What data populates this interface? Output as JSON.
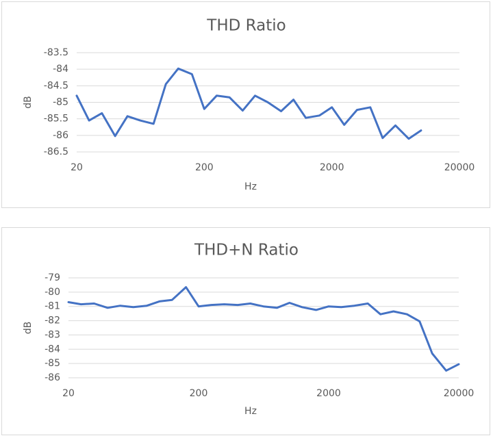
{
  "colors": {
    "series": "#4472C4",
    "grid": "#D9D9D9",
    "text": "#595959",
    "border": "#D9D9D9"
  },
  "chart_data": [
    {
      "type": "line",
      "title": "THD Ratio",
      "xlabel": "Hz",
      "ylabel": "dB",
      "x_scale": "log",
      "xlim": [
        20,
        20000
      ],
      "ylim": [
        -86.5,
        -83.5
      ],
      "x_ticks": [
        "20",
        "200",
        "2000",
        "20000"
      ],
      "y_ticks": [
        "-83.5",
        "-84",
        "-84.5",
        "-85",
        "-85.5",
        "-86",
        "-86.5"
      ],
      "grid": true,
      "legend": "none",
      "series": [
        {
          "x": [
            20,
            25,
            31.5,
            40,
            50,
            63,
            80,
            100,
            125,
            160,
            200,
            250,
            315,
            400,
            500,
            630,
            800,
            1000,
            1250,
            1600,
            2000,
            2500,
            3150,
            4000,
            5000,
            6300,
            8000,
            10000
          ],
          "values": [
            -84.8,
            -85.55,
            -85.33,
            -86.02,
            -85.42,
            -85.55,
            -85.65,
            -84.45,
            -83.98,
            -84.15,
            -85.2,
            -84.8,
            -84.85,
            -85.25,
            -84.8,
            -85.0,
            -85.27,
            -84.92,
            -85.47,
            -85.4,
            -85.15,
            -85.68,
            -85.23,
            -85.15,
            -86.08,
            -85.7,
            -86.1,
            -85.85
          ]
        }
      ]
    },
    {
      "type": "line",
      "title": "THD+N Ratio",
      "xlabel": "Hz",
      "ylabel": "dB",
      "x_scale": "log",
      "xlim": [
        20,
        20000
      ],
      "ylim": [
        -86,
        -79
      ],
      "x_ticks": [
        "20",
        "200",
        "2000",
        "20000"
      ],
      "y_ticks": [
        "-79",
        "-80",
        "-81",
        "-82",
        "-83",
        "-84",
        "-85",
        "-86"
      ],
      "grid": true,
      "legend": "none",
      "series": [
        {
          "x": [
            20,
            25,
            31.5,
            40,
            50,
            63,
            80,
            100,
            125,
            160,
            200,
            250,
            315,
            400,
            500,
            630,
            800,
            1000,
            1250,
            1600,
            2000,
            2500,
            3150,
            4000,
            5000,
            6300,
            8000,
            10000,
            12500,
            16000,
            20000
          ],
          "values": [
            -80.7,
            -80.85,
            -80.8,
            -81.1,
            -80.95,
            -81.05,
            -80.95,
            -80.65,
            -80.55,
            -79.65,
            -81.0,
            -80.9,
            -80.85,
            -80.9,
            -80.8,
            -81.0,
            -81.1,
            -80.75,
            -81.05,
            -81.25,
            -81.0,
            -81.05,
            -80.95,
            -80.8,
            -81.55,
            -81.35,
            -81.55,
            -82.05,
            -84.3,
            -85.5,
            -85.05
          ]
        }
      ]
    }
  ]
}
